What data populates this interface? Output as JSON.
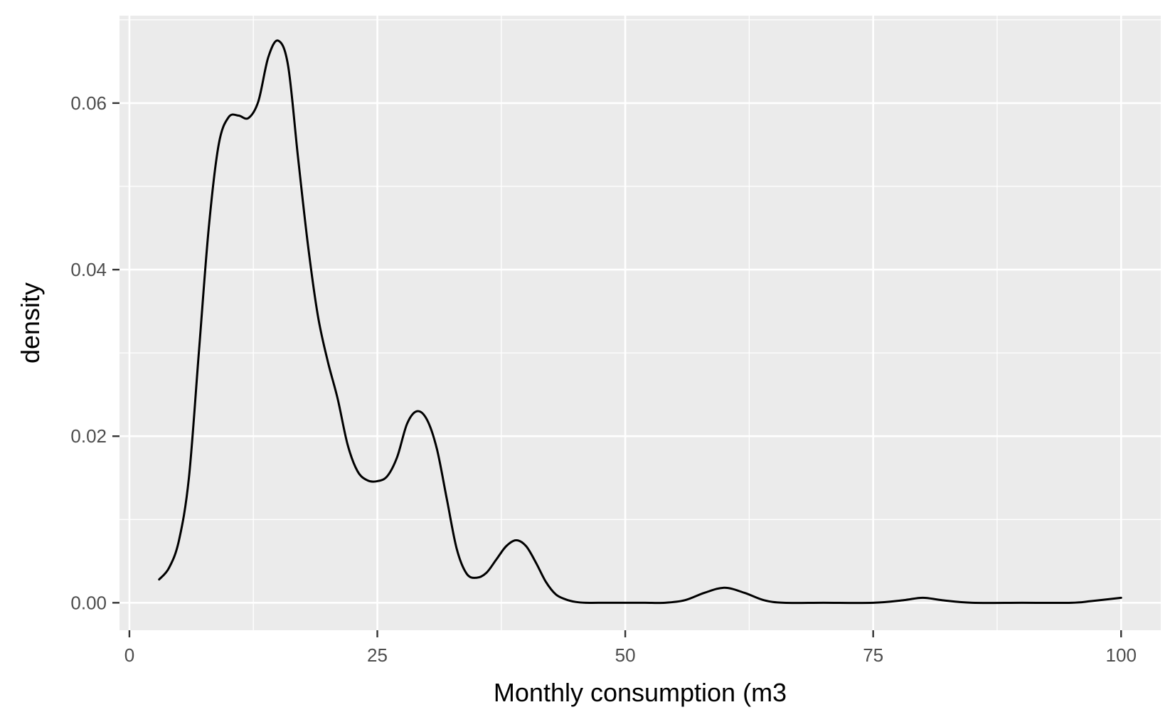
{
  "chart_data": {
    "type": "line",
    "subtype": "density",
    "title": "",
    "xlabel": "Monthly consumption (m3",
    "ylabel": "density",
    "xlim": [
      -1,
      104
    ],
    "ylim": [
      -0.0033,
      0.0705
    ],
    "x_ticks": [
      0,
      25,
      50,
      75,
      100
    ],
    "x_tick_labels": [
      "0",
      "25",
      "50",
      "75",
      "100"
    ],
    "y_ticks": [
      0.0,
      0.02,
      0.04,
      0.06
    ],
    "y_tick_labels": [
      "0.00",
      "0.02",
      "0.04",
      "0.06"
    ],
    "grid": true,
    "legend": "none",
    "colors": {
      "panel_background": "#ebebeb",
      "grid": "#ffffff",
      "line": "#000000",
      "tick_label": "#4d4d4d",
      "axis_title": "#000000",
      "tick_mark": "#333333"
    },
    "series": [
      {
        "x": [
          3,
          4,
          5,
          6,
          7,
          8,
          9,
          10,
          11,
          12,
          13,
          14,
          15,
          16,
          17,
          18,
          19,
          20,
          21,
          22,
          23,
          24,
          25,
          26,
          27,
          28,
          29,
          30,
          31,
          32,
          33,
          34,
          35,
          36,
          37,
          38,
          39,
          40,
          41,
          42,
          43,
          44,
          45,
          46,
          48,
          50,
          52,
          54,
          56,
          58,
          60,
          62,
          64,
          66,
          70,
          75,
          78,
          80,
          82,
          85,
          90,
          95,
          97,
          100
        ],
        "y": [
          0.0028,
          0.0042,
          0.0075,
          0.015,
          0.03,
          0.045,
          0.055,
          0.0583,
          0.0585,
          0.0582,
          0.0602,
          0.0655,
          0.0675,
          0.0645,
          0.0535,
          0.043,
          0.0345,
          0.029,
          0.0245,
          0.019,
          0.0158,
          0.0147,
          0.0146,
          0.0152,
          0.0175,
          0.0215,
          0.023,
          0.022,
          0.0185,
          0.0125,
          0.0065,
          0.0035,
          0.003,
          0.0036,
          0.0052,
          0.0068,
          0.0075,
          0.0068,
          0.0048,
          0.0025,
          0.001,
          0.0004,
          0.0001,
          0.0,
          0.0,
          0.0,
          0.0,
          0.0,
          0.0003,
          0.0012,
          0.0018,
          0.0012,
          0.0003,
          0.0,
          0.0,
          0.0,
          0.0003,
          0.0006,
          0.0003,
          0.0,
          0.0,
          0.0,
          0.0002,
          0.0006
        ]
      }
    ]
  }
}
